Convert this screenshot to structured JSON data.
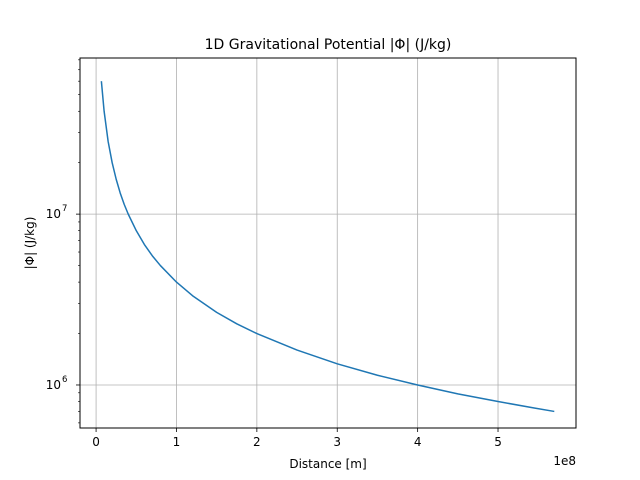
{
  "chart_data": {
    "type": "line",
    "title": "1D Gravitational Potential |Φ| (J/kg)",
    "xlabel": "Distance [m]",
    "ylabel": "|Φ| (J/kg)",
    "x_offset_label": "1e8",
    "x_scale": "linear",
    "y_scale": "log",
    "xlim": [
      -20000000.0,
      597000000.0
    ],
    "ylim": [
      560000,
      82000000
    ],
    "x_ticks": [
      {
        "value": 0,
        "label": "0"
      },
      {
        "value": 100000000,
        "label": "1"
      },
      {
        "value": 200000000,
        "label": "2"
      },
      {
        "value": 300000000,
        "label": "3"
      },
      {
        "value": 400000000,
        "label": "4"
      },
      {
        "value": 500000000,
        "label": "5"
      }
    ],
    "y_ticks": [
      {
        "value": 1000000,
        "base": "10",
        "exp": "6"
      },
      {
        "value": 10000000,
        "base": "10",
        "exp": "7"
      }
    ],
    "grid": true,
    "series": [
      {
        "color": "#1f77b4",
        "x": [
          6600000.0,
          10000000.0,
          15000000.0,
          20000000.0,
          25000000.0,
          30000000.0,
          35000000.0,
          40000000.0,
          50000000.0,
          60000000.0,
          70000000.0,
          80000000.0,
          100000000.0,
          120000000.0,
          150000000.0,
          175000000.0,
          200000000.0,
          250000000.0,
          300000000.0,
          350000000.0,
          400000000.0,
          450000000.0,
          500000000.0,
          545000000.0,
          570000000.0
        ],
        "y": [
          60000000,
          40000000,
          26600000,
          20000000,
          16000000,
          13300000,
          11400000,
          10000000,
          8000000,
          6650000,
          5700000,
          5000000,
          4000000,
          3330000,
          2660000,
          2280000,
          2000000,
          1600000,
          1330000,
          1140000,
          1000000,
          887000,
          800000,
          733000,
          700000
        ]
      }
    ]
  }
}
